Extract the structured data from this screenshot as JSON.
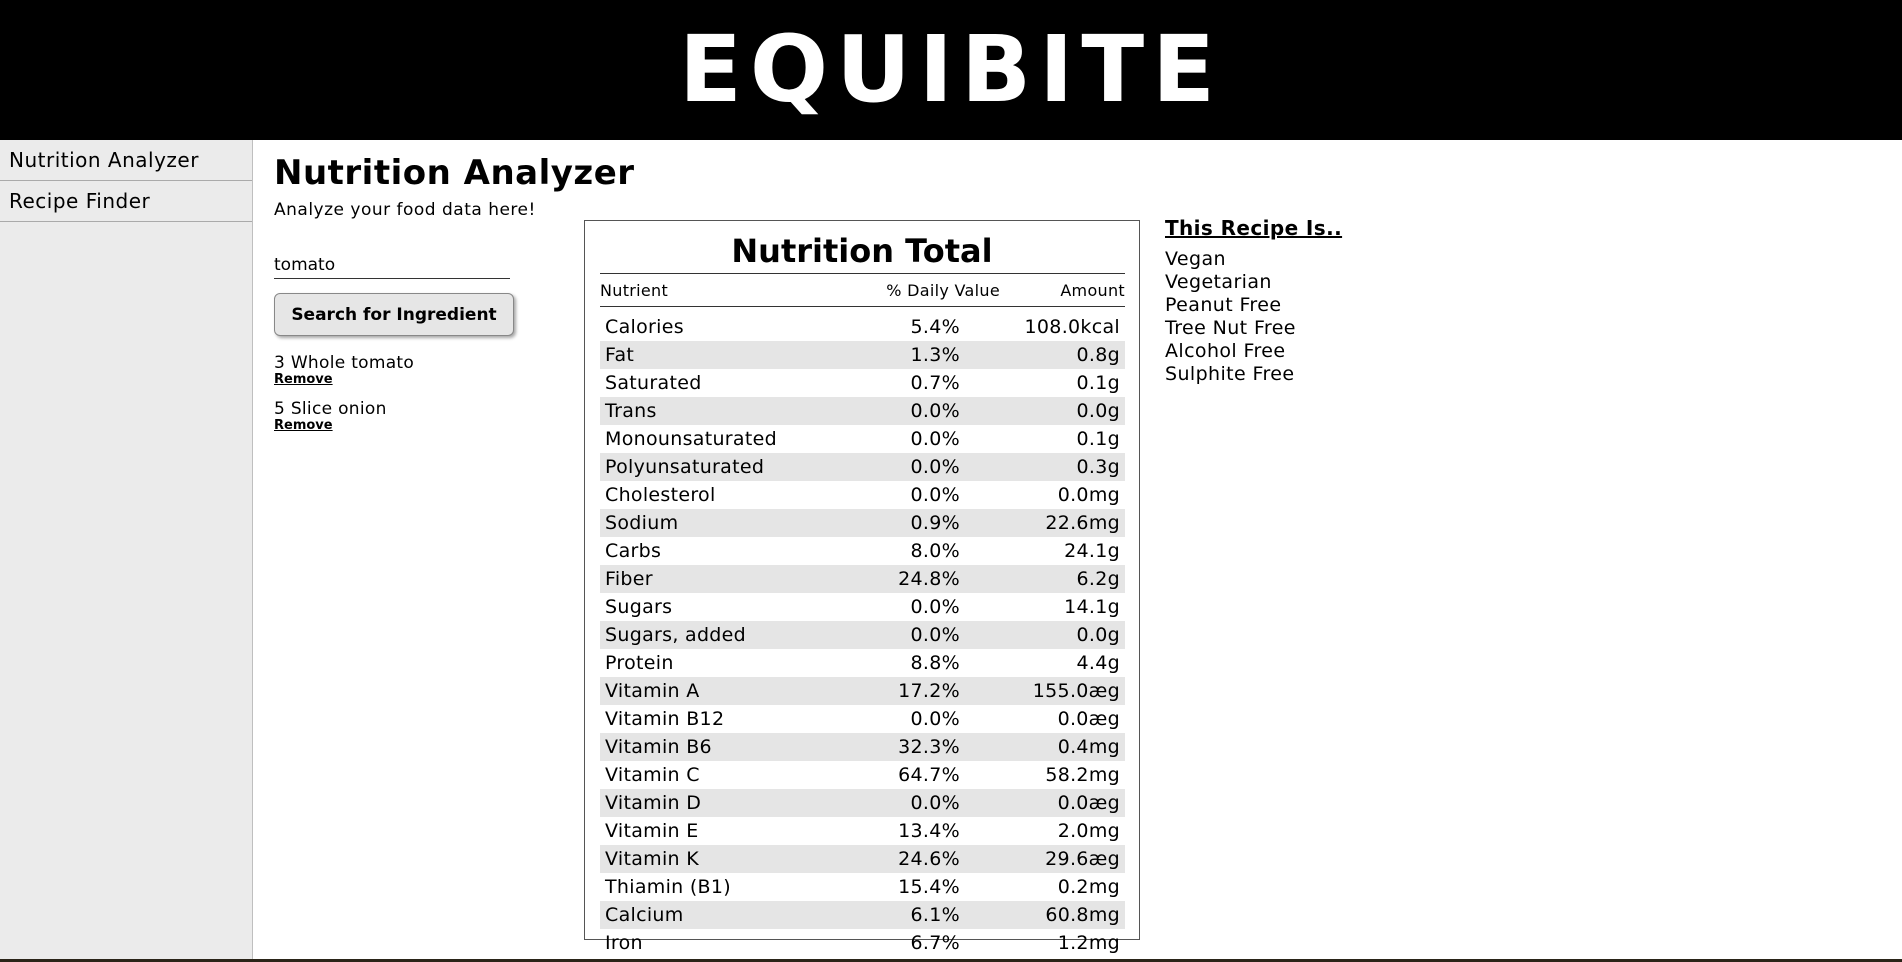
{
  "app": {
    "logo": "EQUIBITE"
  },
  "sidebar": {
    "items": [
      {
        "label": "Nutrition Analyzer"
      },
      {
        "label": "Recipe Finder"
      }
    ]
  },
  "main": {
    "title": "Nutrition Analyzer",
    "subtitle": "Analyze your food data here!",
    "search": {
      "value": "tomato",
      "placeholder": ""
    },
    "search_button_label": "Search for Ingredient",
    "ingredients": [
      {
        "name": "3 Whole tomato",
        "remove_label": "Remove"
      },
      {
        "name": "5 Slice onion",
        "remove_label": "Remove"
      }
    ]
  },
  "nutrition": {
    "title": "Nutrition Total",
    "columns": {
      "nutrient": "Nutrient",
      "daily": "% Daily Value",
      "amount": "Amount"
    },
    "rows": [
      {
        "name": "Calories",
        "daily": "5.4%",
        "amount": "108.0kcal"
      },
      {
        "name": "Fat",
        "daily": "1.3%",
        "amount": "0.8g"
      },
      {
        "name": "Saturated",
        "daily": "0.7%",
        "amount": "0.1g"
      },
      {
        "name": "Trans",
        "daily": "0.0%",
        "amount": "0.0g"
      },
      {
        "name": "Monounsaturated",
        "daily": "0.0%",
        "amount": "0.1g"
      },
      {
        "name": "Polyunsaturated",
        "daily": "0.0%",
        "amount": "0.3g"
      },
      {
        "name": "Cholesterol",
        "daily": "0.0%",
        "amount": "0.0mg"
      },
      {
        "name": "Sodium",
        "daily": "0.9%",
        "amount": "22.6mg"
      },
      {
        "name": "Carbs",
        "daily": "8.0%",
        "amount": "24.1g"
      },
      {
        "name": "Fiber",
        "daily": "24.8%",
        "amount": "6.2g"
      },
      {
        "name": "Sugars",
        "daily": "0.0%",
        "amount": "14.1g"
      },
      {
        "name": "Sugars, added",
        "daily": "0.0%",
        "amount": "0.0g"
      },
      {
        "name": "Protein",
        "daily": "8.8%",
        "amount": "4.4g"
      },
      {
        "name": "Vitamin A",
        "daily": "17.2%",
        "amount": "155.0æg"
      },
      {
        "name": "Vitamin B12",
        "daily": "0.0%",
        "amount": "0.0æg"
      },
      {
        "name": "Vitamin B6",
        "daily": "32.3%",
        "amount": "0.4mg"
      },
      {
        "name": "Vitamin C",
        "daily": "64.7%",
        "amount": "58.2mg"
      },
      {
        "name": "Vitamin D",
        "daily": "0.0%",
        "amount": "0.0æg"
      },
      {
        "name": "Vitamin E",
        "daily": "13.4%",
        "amount": "2.0mg"
      },
      {
        "name": "Vitamin K",
        "daily": "24.6%",
        "amount": "29.6æg"
      },
      {
        "name": "Thiamin (B1)",
        "daily": "15.4%",
        "amount": "0.2mg"
      },
      {
        "name": "Calcium",
        "daily": "6.1%",
        "amount": "60.8mg"
      },
      {
        "name": "Iron",
        "daily": "6.7%",
        "amount": "1.2mg"
      }
    ]
  },
  "diet": {
    "title": "This Recipe Is..",
    "labels": [
      "Vegan",
      "Vegetarian",
      "Peanut Free",
      "Tree Nut Free",
      "Alcohol Free",
      "Sulphite Free"
    ]
  }
}
